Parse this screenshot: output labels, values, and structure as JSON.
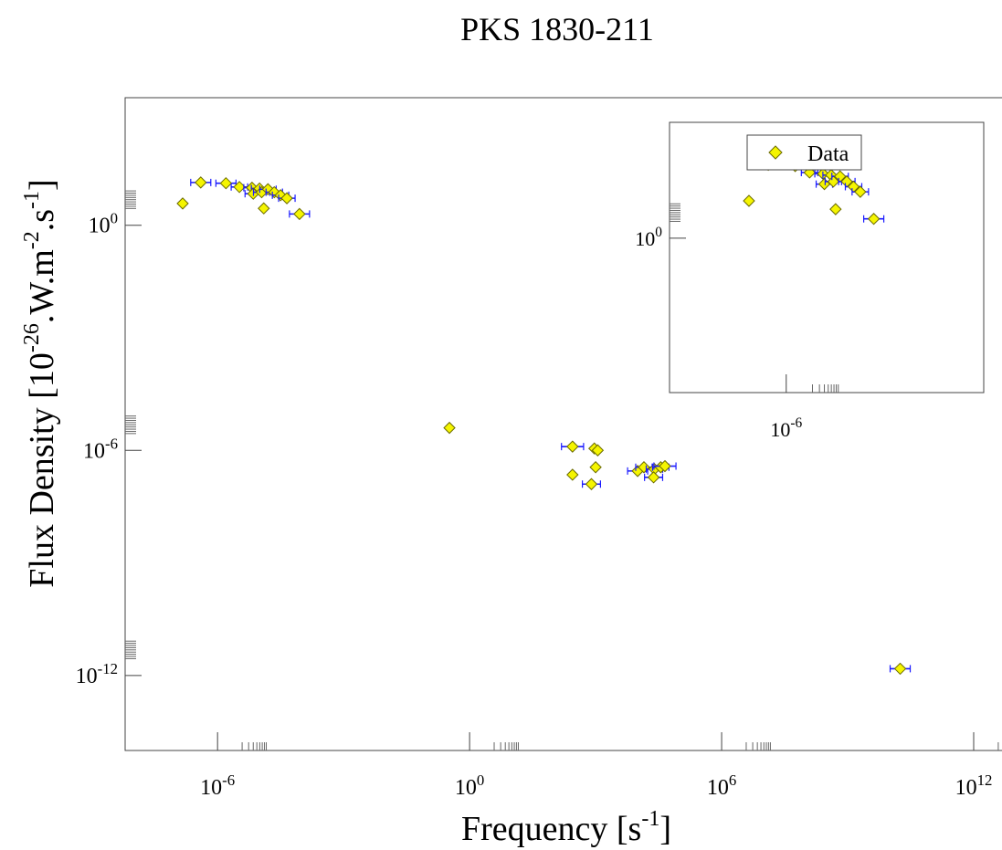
{
  "chart_data": [
    {
      "type": "scatter",
      "title": "PKS 1830-211",
      "xlabel": {
        "base": "Frequency [s",
        "exp": "-1",
        "end": "]"
      },
      "ylabel": {
        "base": "Flux Density [10",
        "exp1": "-26",
        "mid": ".W.m",
        "exp2": "-2",
        "mid2": ".s",
        "exp3": "-1",
        "end": "]"
      },
      "x_scale": "log",
      "y_scale": "log",
      "xlim_log10": [
        -8.2,
        13.0
      ],
      "ylim_log10": [
        -14.0,
        3.4
      ],
      "x_ticks": [
        {
          "base": "10",
          "exp": "-6",
          "log10": -6
        },
        {
          "base": "10",
          "exp": "0",
          "log10": 0
        },
        {
          "base": "10",
          "exp": "6",
          "log10": 6
        },
        {
          "base": "10",
          "exp": "12",
          "log10": 12
        }
      ],
      "y_ticks": [
        {
          "base": "10",
          "exp": "0",
          "log10": 0
        },
        {
          "base": "10",
          "exp": "-6",
          "log10": -6
        },
        {
          "base": "10",
          "exp": "-12",
          "log10": -12
        }
      ],
      "marker": {
        "shape": "diamond",
        "fill": "#f5f500",
        "stroke": "#6b6b00",
        "errorbar": "#1a1aff"
      },
      "points": [
        {
          "x": -6.83,
          "y": 0.58,
          "xerr": 0
        },
        {
          "x": -6.4,
          "y": 1.14,
          "xerr": 0.2
        },
        {
          "x": -5.8,
          "y": 1.12,
          "xerr": 0.2
        },
        {
          "x": -5.48,
          "y": 1.02,
          "xerr": 0.1
        },
        {
          "x": -5.18,
          "y": 1.0,
          "xerr": 0.1
        },
        {
          "x": -5.0,
          "y": 0.98,
          "xerr": 0.12
        },
        {
          "x": -5.15,
          "y": 0.84,
          "xerr": 0.1
        },
        {
          "x": -4.95,
          "y": 0.88,
          "xerr": 0.1
        },
        {
          "x": -4.8,
          "y": 0.96,
          "xerr": 0.1
        },
        {
          "x": -4.65,
          "y": 0.88,
          "xerr": 0.1
        },
        {
          "x": -4.5,
          "y": 0.8,
          "xerr": 0.1
        },
        {
          "x": -4.35,
          "y": 0.72,
          "xerr": 0.1
        },
        {
          "x": -4.9,
          "y": 0.45,
          "xerr": 0
        },
        {
          "x": -4.05,
          "y": 0.3,
          "xerr": 0.2
        },
        {
          "x": -0.48,
          "y": -5.4,
          "xerr": 0
        },
        {
          "x": 2.45,
          "y": -5.9,
          "xerr": 0.22
        },
        {
          "x": 2.45,
          "y": -6.65,
          "xerr": 0
        },
        {
          "x": 2.97,
          "y": -5.95,
          "xerr": 0
        },
        {
          "x": 3.05,
          "y": -6.0,
          "xerr": 0
        },
        {
          "x": 3.0,
          "y": -6.45,
          "xerr": 0
        },
        {
          "x": 2.9,
          "y": -6.9,
          "xerr": 0.18
        },
        {
          "x": 4.0,
          "y": -6.55,
          "xerr": 0.2
        },
        {
          "x": 4.15,
          "y": -6.45,
          "xerr": 0.15
        },
        {
          "x": 4.4,
          "y": -6.5,
          "xerr": 0.15
        },
        {
          "x": 4.55,
          "y": -6.45,
          "xerr": 0.15
        },
        {
          "x": 4.38,
          "y": -6.72,
          "xerr": 0.18
        },
        {
          "x": 4.65,
          "y": -6.42,
          "xerr": 0.22
        },
        {
          "x": 10.25,
          "y": -11.82,
          "xerr": 0.2
        }
      ]
    },
    {
      "type": "scatter",
      "inset": true,
      "legend": {
        "label": "Data",
        "position": "top-center"
      },
      "x_scale": "log",
      "y_scale": "log",
      "xlim_log10": [
        -8.6,
        -1.6
      ],
      "ylim_log10": [
        -2.4,
        1.8
      ],
      "x_ticks": [
        {
          "base": "10",
          "exp": "-6",
          "log10": -6
        }
      ],
      "y_ticks": [
        {
          "base": "10",
          "exp": "0",
          "log10": 0
        }
      ],
      "points": [
        {
          "x": -6.83,
          "y": 0.58,
          "xerr": 0
        },
        {
          "x": -6.4,
          "y": 1.14,
          "xerr": 0.2
        },
        {
          "x": -5.8,
          "y": 1.12,
          "xerr": 0.2
        },
        {
          "x": -5.48,
          "y": 1.02,
          "xerr": 0.1
        },
        {
          "x": -5.18,
          "y": 1.0,
          "xerr": 0.1
        },
        {
          "x": -5.0,
          "y": 0.98,
          "xerr": 0.12
        },
        {
          "x": -5.15,
          "y": 0.84,
          "xerr": 0.1
        },
        {
          "x": -4.95,
          "y": 0.88,
          "xerr": 0.1
        },
        {
          "x": -4.8,
          "y": 0.96,
          "xerr": 0.1
        },
        {
          "x": -4.65,
          "y": 0.88,
          "xerr": 0.1
        },
        {
          "x": -4.5,
          "y": 0.8,
          "xerr": 0.1
        },
        {
          "x": -4.35,
          "y": 0.72,
          "xerr": 0.1
        },
        {
          "x": -4.9,
          "y": 0.45,
          "xerr": 0
        },
        {
          "x": -4.05,
          "y": 0.3,
          "xerr": 0.2
        }
      ]
    }
  ]
}
